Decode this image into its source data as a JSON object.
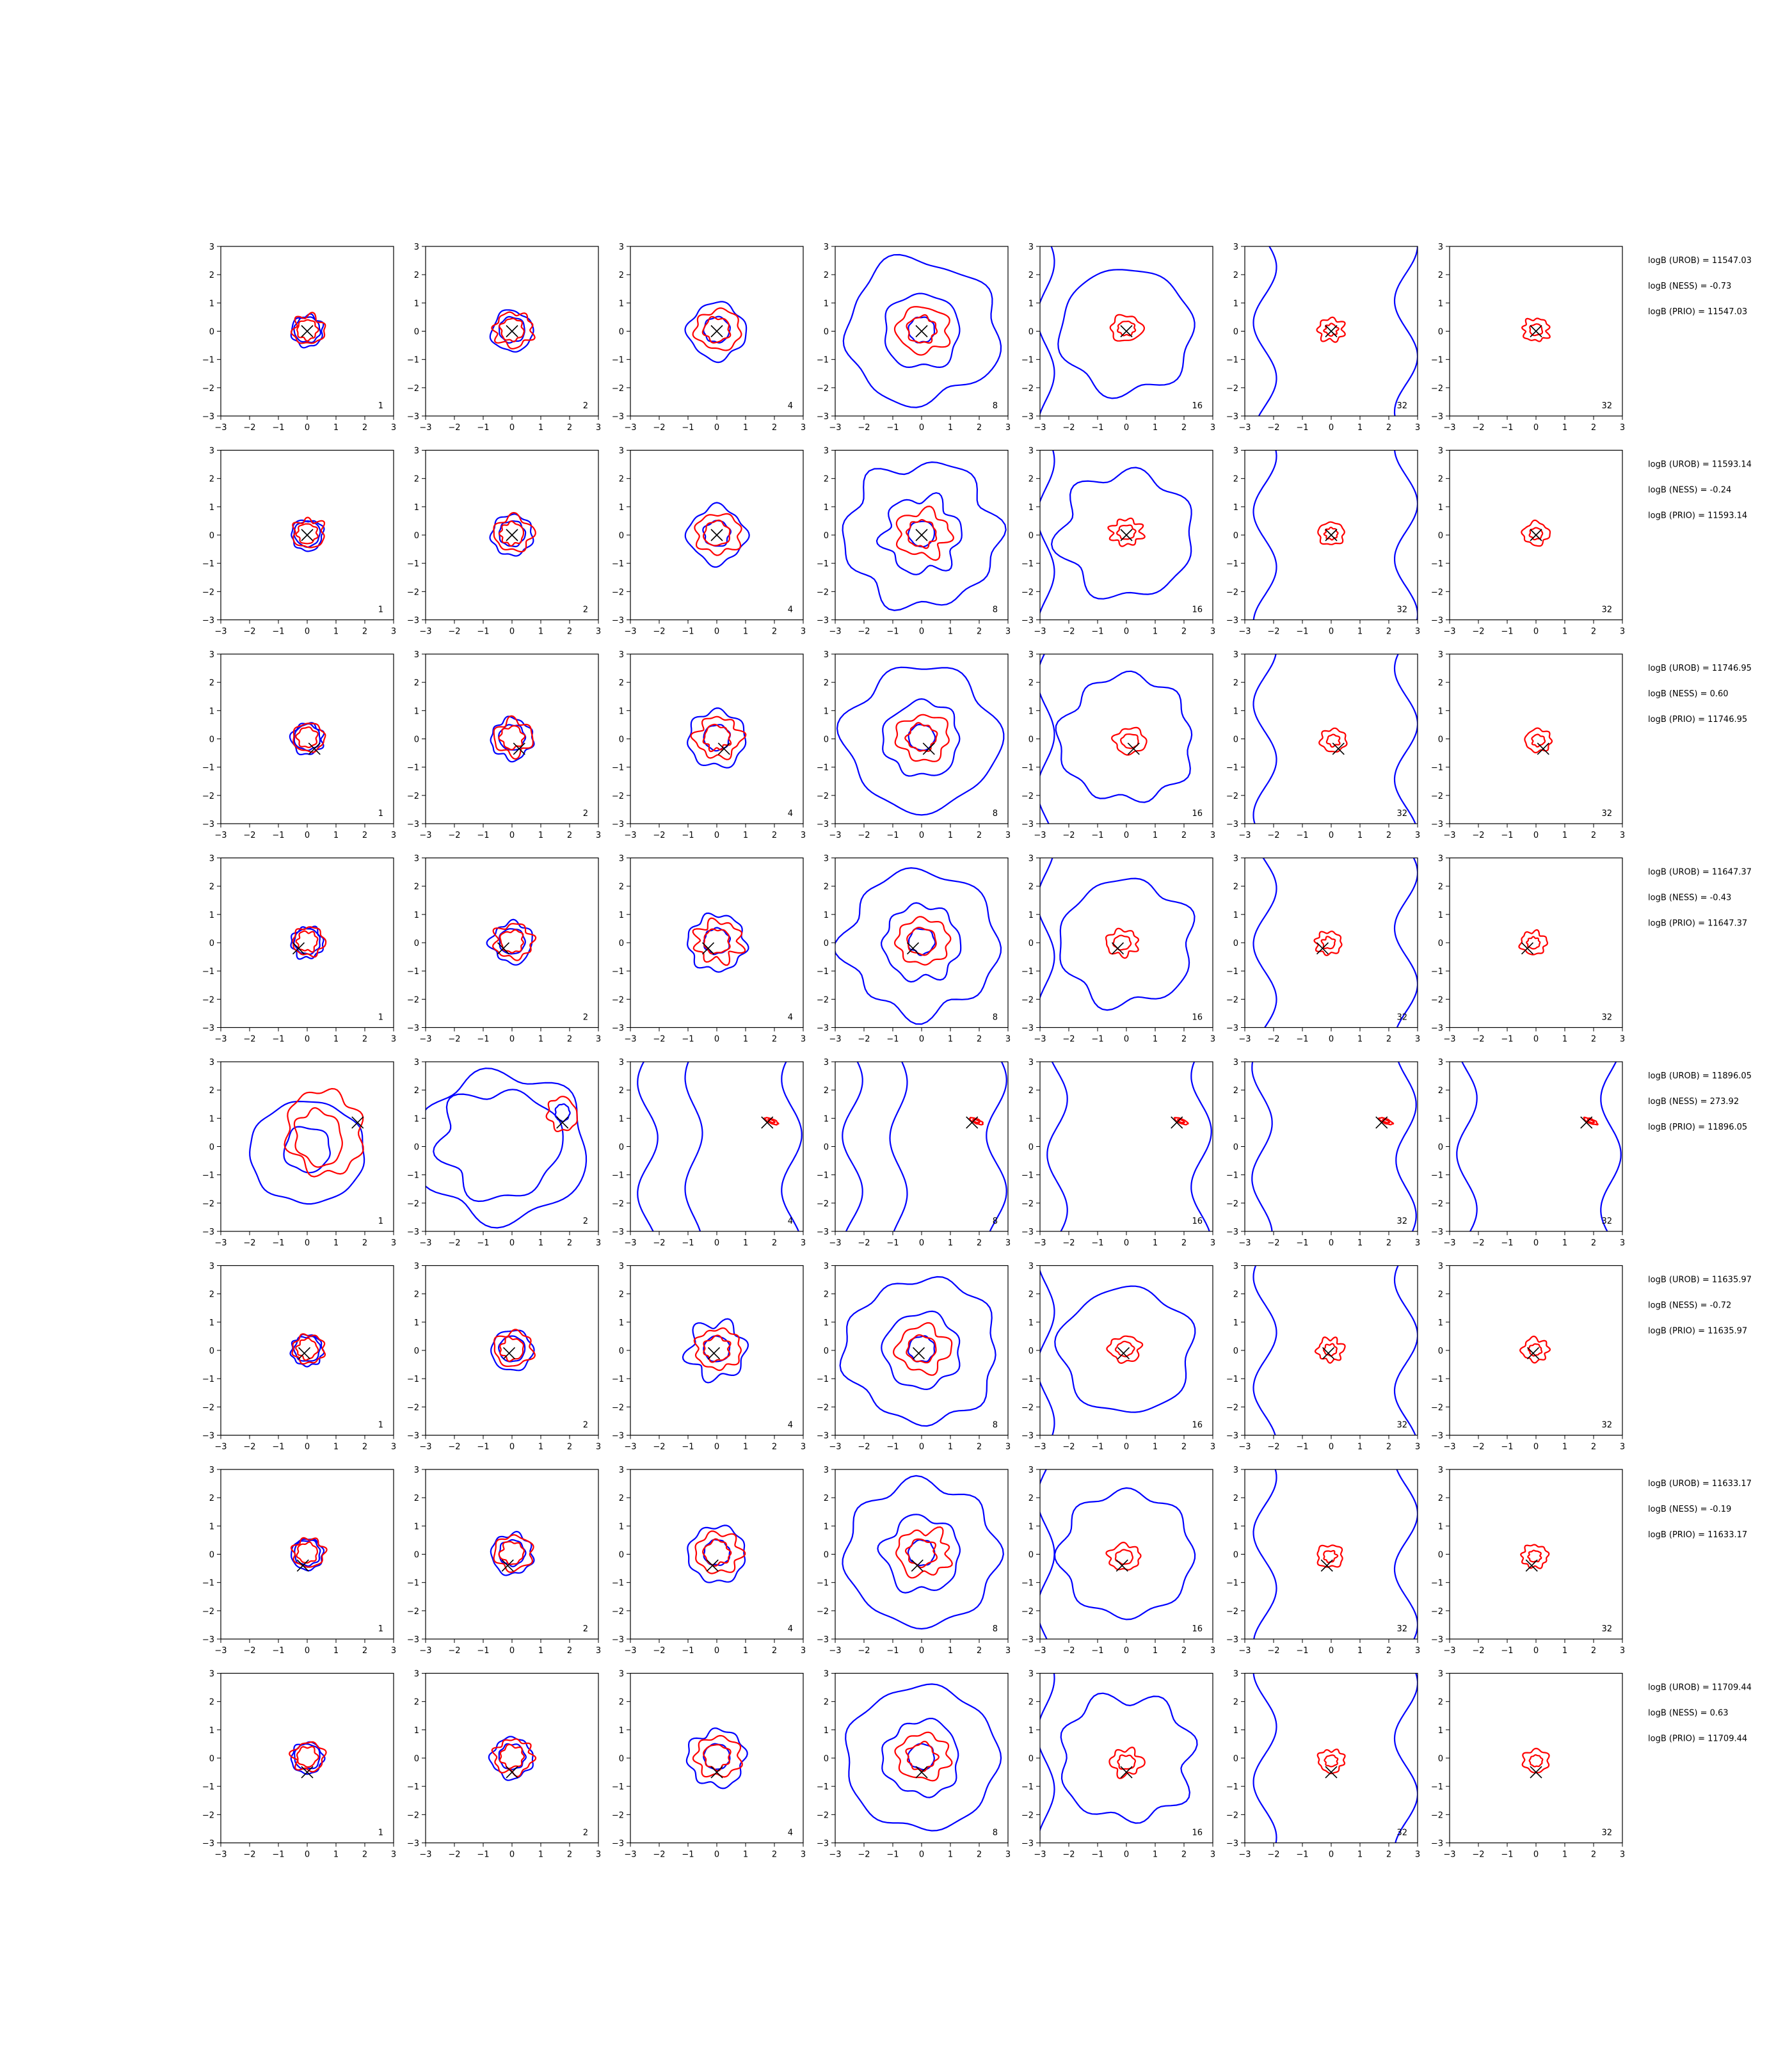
{
  "chart_data": {
    "type": "contour-grid",
    "rows": 8,
    "cols": 7,
    "xlim": [
      -3,
      3
    ],
    "ylim": [
      -3,
      3
    ],
    "ticks": [
      -3,
      -2,
      -1,
      0,
      1,
      2,
      3
    ],
    "tick_labels": [
      "−3",
      "−2",
      "−1",
      "0",
      "1",
      "2",
      "3"
    ],
    "panel_labels": [
      "1",
      "2",
      "4",
      "8",
      "16",
      "32",
      "32"
    ],
    "colors": {
      "blue": "#0000ff",
      "red": "#ff0000",
      "marker": "#000000"
    },
    "markers": [
      [
        0.0,
        0.0
      ],
      [
        0.0,
        0.0
      ],
      [
        0.25,
        -0.35
      ],
      [
        -0.3,
        -0.2
      ],
      [
        1.75,
        0.85
      ],
      [
        -0.1,
        -0.1
      ],
      [
        -0.15,
        -0.4
      ],
      [
        0.0,
        -0.5
      ]
    ],
    "annotations": [
      [
        "logB (UROB) = 11547.03",
        "logB (NESS) = -0.73",
        "logB (PRIO) = 11547.03"
      ],
      [
        "logB (UROB) = 11593.14",
        "logB (NESS) = -0.24",
        "logB (PRIO) = 11593.14"
      ],
      [
        "logB (UROB) = 11746.95",
        "logB (NESS) = 0.60",
        "logB (PRIO) = 11746.95"
      ],
      [
        "logB (UROB) = 11647.37",
        "logB (NESS) = -0.43",
        "logB (PRIO) = 11647.37"
      ],
      [
        "logB (UROB) = 11896.05",
        "logB (NESS) = 273.92",
        "logB (PRIO) = 11896.05"
      ],
      [
        "logB (UROB) = 11635.97",
        "logB (NESS) = -0.72",
        "logB (PRIO) = 11635.97"
      ],
      [
        "logB (UROB) = 11633.17",
        "logB (NESS) = -0.19",
        "logB (PRIO) = 11633.17"
      ],
      [
        "logB (UROB) = 11709.44",
        "logB (NESS) = 0.63",
        "logB (PRIO) = 11709.44"
      ]
    ]
  }
}
